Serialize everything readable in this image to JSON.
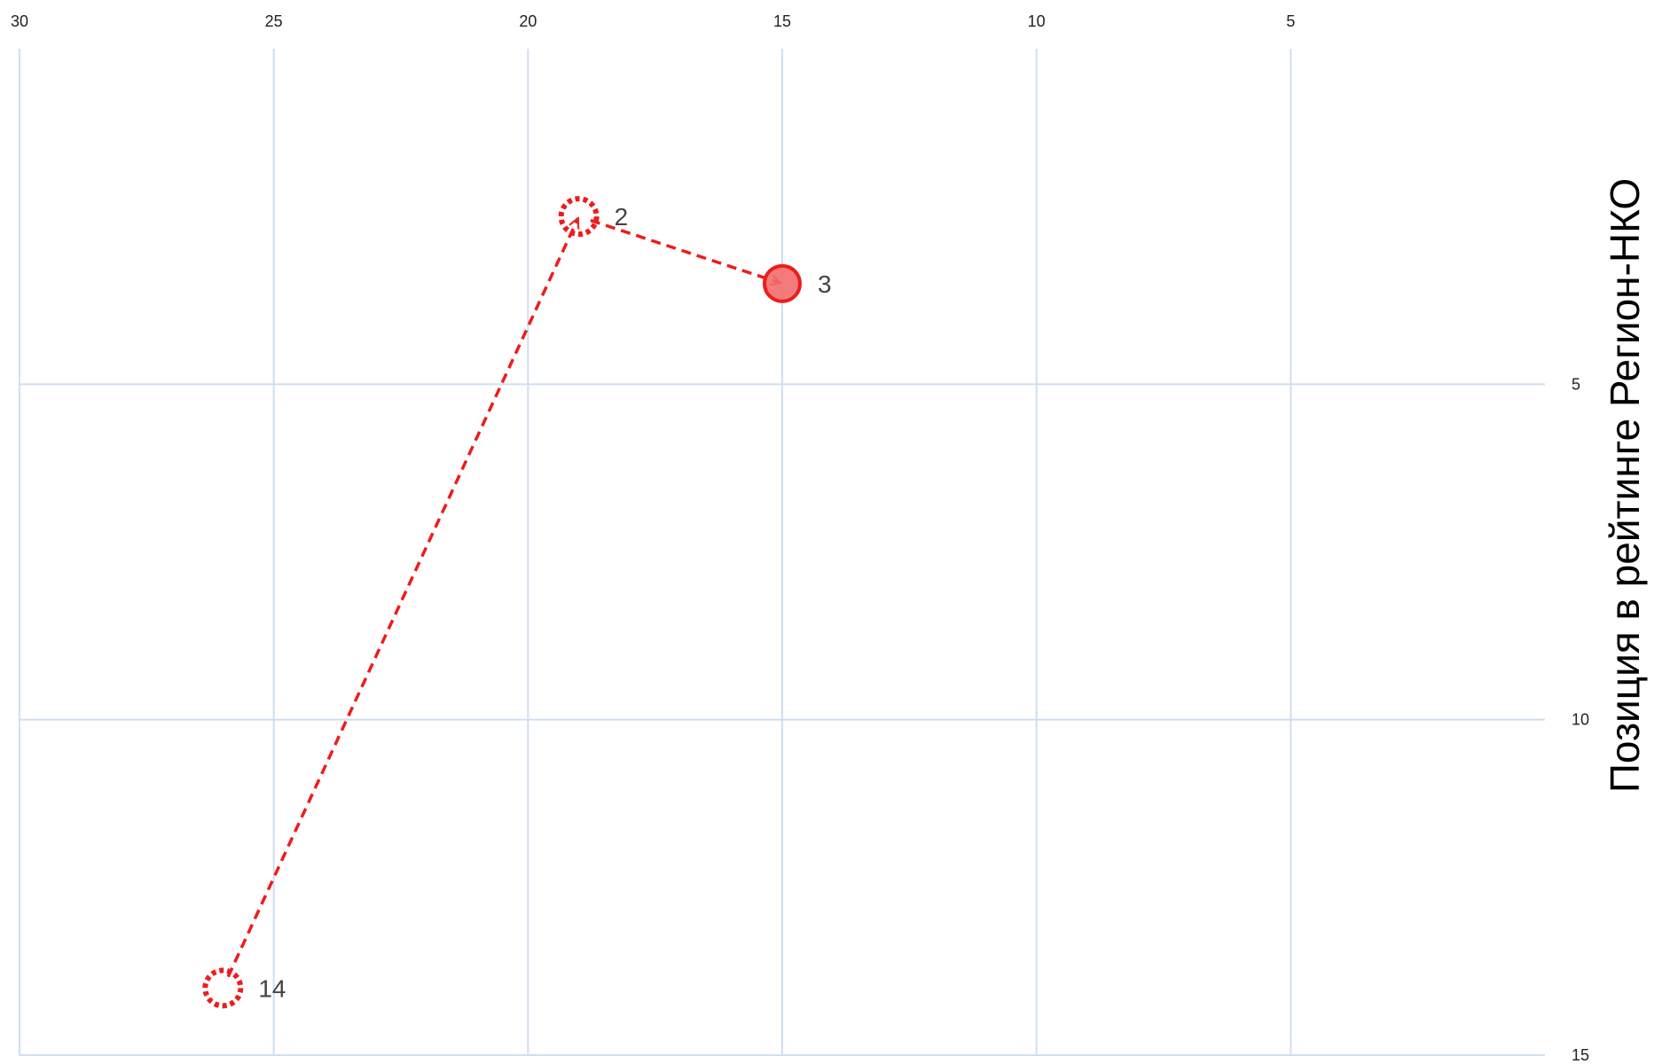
{
  "chart_data": {
    "type": "scatter",
    "title": "",
    "xlabel": "",
    "ylabel": "Позиция в рейтинге Регион-НКО",
    "x_axis": {
      "position": "top",
      "reversed": true,
      "min": 0,
      "max": 30,
      "ticks": [
        30,
        25,
        20,
        15,
        10,
        5
      ],
      "tick_labels": [
        "30",
        "25",
        "20",
        "15",
        "10",
        "5"
      ],
      "grid": true
    },
    "y_axis": {
      "position": "right",
      "reversed": true,
      "min": 0,
      "max": 15,
      "ticks": [
        5,
        10,
        15
      ],
      "tick_labels": [
        "5",
        "10",
        "15"
      ],
      "grid": true
    },
    "points": [
      {
        "x": 26,
        "y": 14,
        "label": "14",
        "style": "dotted-hollow"
      },
      {
        "x": 19,
        "y": 2.5,
        "label": "2",
        "style": "dotted-hollow"
      },
      {
        "x": 15,
        "y": 3.5,
        "label": "3",
        "style": "filled"
      }
    ],
    "trajectory": {
      "from_to": [
        [
          0,
          1
        ],
        [
          1,
          2
        ]
      ],
      "style": "dashed-arrow"
    },
    "colors": {
      "marker": "#ee1c1c",
      "marker_fill": "#f26d6d",
      "grid": "#cfdff0",
      "label": "#444444"
    }
  }
}
